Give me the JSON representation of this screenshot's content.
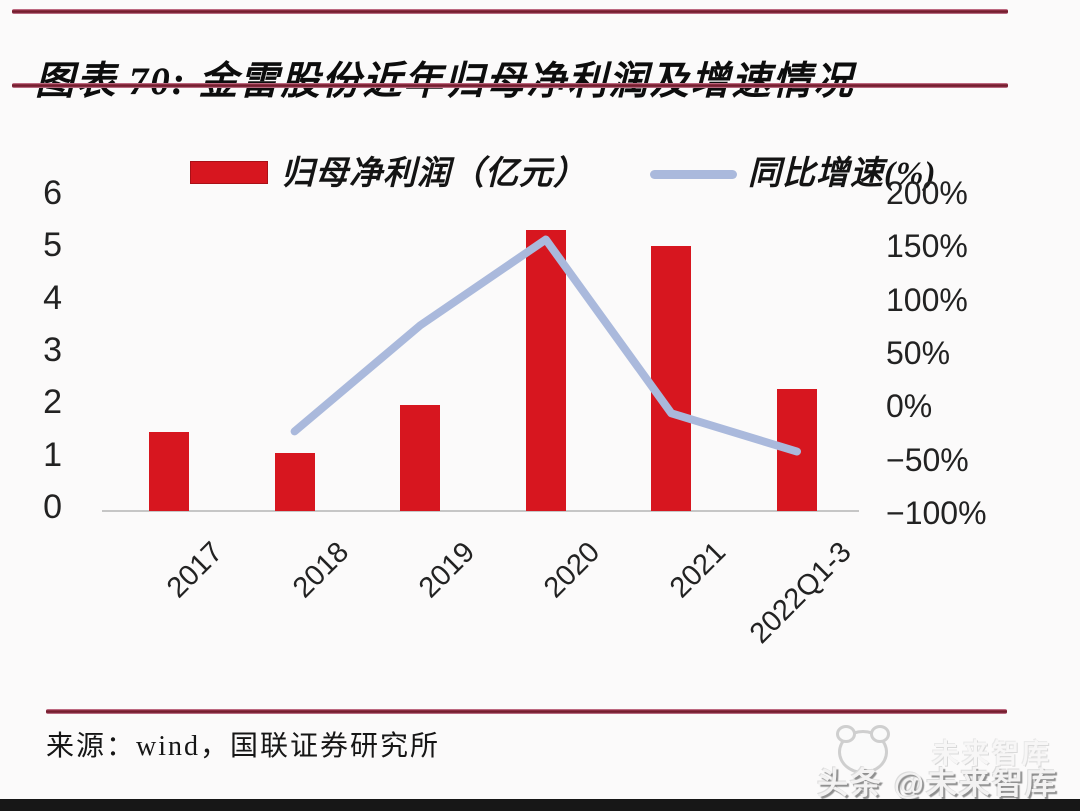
{
  "title": "图表 70: 金雷股份近年归母净利润及增速情况",
  "source": "来源：wind，国联证券研究所",
  "watermark": {
    "main": "头条 @未来智库",
    "ghost": "未来智库",
    "logo": "panda-icon"
  },
  "colors": {
    "bar": "#d7161f",
    "line": "#aab9dc",
    "rule": "#7e1f31",
    "axis_text": "#222222"
  },
  "chart_data": {
    "type": "bar",
    "title": "金雷股份近年归母净利润及增速情况",
    "categories": [
      "2017",
      "2018",
      "2019",
      "2020",
      "2021",
      "2022Q1-3"
    ],
    "series": [
      {
        "name": "归母净利润（亿元）",
        "type": "bar",
        "axis": "left",
        "values": [
          1.5,
          1.1,
          2.0,
          5.3,
          5.0,
          2.3
        ]
      },
      {
        "name": "同比增速(%)",
        "type": "line",
        "axis": "right",
        "values": [
          null,
          -23,
          77,
          158,
          -6,
          -42
        ]
      }
    ],
    "left_axis": {
      "ticks": [
        "6",
        "5",
        "4",
        "3",
        "2",
        "1",
        "0"
      ],
      "range": [
        0,
        6
      ]
    },
    "right_axis": {
      "ticks": [
        "200%",
        "150%",
        "100%",
        "50%",
        "0%",
        "−50%",
        "−100%"
      ],
      "range": [
        -100,
        200
      ]
    },
    "grid": false,
    "legend_position": "top"
  }
}
